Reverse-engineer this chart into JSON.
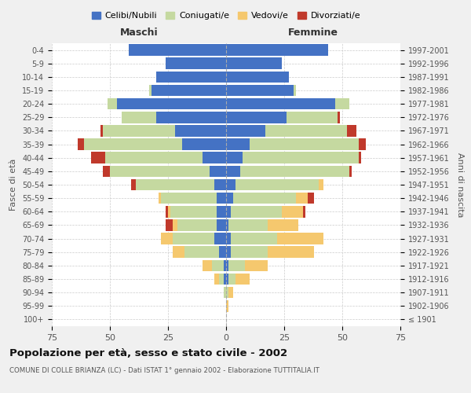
{
  "age_groups": [
    "100+",
    "95-99",
    "90-94",
    "85-89",
    "80-84",
    "75-79",
    "70-74",
    "65-69",
    "60-64",
    "55-59",
    "50-54",
    "45-49",
    "40-44",
    "35-39",
    "30-34",
    "25-29",
    "20-24",
    "15-19",
    "10-14",
    "5-9",
    "0-4"
  ],
  "birth_years": [
    "≤ 1901",
    "1902-1906",
    "1907-1911",
    "1912-1916",
    "1917-1921",
    "1922-1926",
    "1927-1931",
    "1932-1936",
    "1937-1941",
    "1942-1946",
    "1947-1951",
    "1952-1956",
    "1957-1961",
    "1962-1966",
    "1967-1971",
    "1972-1976",
    "1977-1981",
    "1982-1986",
    "1987-1991",
    "1992-1996",
    "1997-2001"
  ],
  "maschi_celibi": [
    0,
    0,
    0,
    1,
    1,
    3,
    5,
    4,
    4,
    4,
    5,
    7,
    10,
    19,
    22,
    30,
    47,
    32,
    30,
    26,
    42
  ],
  "maschi_coniugati": [
    0,
    0,
    1,
    2,
    5,
    15,
    18,
    17,
    20,
    24,
    34,
    43,
    42,
    42,
    31,
    15,
    4,
    1,
    0,
    0,
    0
  ],
  "maschi_vedovi": [
    0,
    0,
    0,
    2,
    4,
    5,
    5,
    2,
    1,
    1,
    0,
    0,
    0,
    0,
    0,
    0,
    0,
    0,
    0,
    0,
    0
  ],
  "maschi_divorziati": [
    0,
    0,
    0,
    0,
    0,
    0,
    0,
    3,
    1,
    0,
    2,
    3,
    6,
    3,
    1,
    0,
    0,
    0,
    0,
    0,
    0
  ],
  "femmine_celibi": [
    0,
    0,
    0,
    1,
    1,
    2,
    2,
    1,
    2,
    3,
    4,
    6,
    7,
    10,
    17,
    26,
    47,
    29,
    27,
    24,
    44
  ],
  "femmine_coniugati": [
    0,
    0,
    1,
    3,
    7,
    16,
    20,
    17,
    22,
    27,
    36,
    47,
    50,
    47,
    35,
    22,
    6,
    1,
    0,
    0,
    0
  ],
  "femmine_vedovi": [
    0,
    1,
    2,
    6,
    10,
    20,
    20,
    13,
    9,
    5,
    2,
    0,
    0,
    0,
    0,
    0,
    0,
    0,
    0,
    0,
    0
  ],
  "femmine_divorziati": [
    0,
    0,
    0,
    0,
    0,
    0,
    0,
    0,
    1,
    3,
    0,
    1,
    1,
    3,
    4,
    1,
    0,
    0,
    0,
    0,
    0
  ],
  "colors": {
    "celibi": "#4472c4",
    "coniugati": "#c5d9a0",
    "vedovi": "#f5c86e",
    "divorziati": "#c0392b"
  },
  "title": "Popolazione per età, sesso e stato civile - 2002",
  "subtitle": "COMUNE DI COLLE BRIANZA (LC) - Dati ISTAT 1° gennaio 2002 - Elaborazione TUTTITALIA.IT",
  "xlabel_left": "Maschi",
  "xlabel_right": "Femmine",
  "ylabel_left": "Fasce di età",
  "ylabel_right": "Anni di nascita",
  "xlim": 75,
  "background_color": "#f0f0f0",
  "plot_background": "#ffffff",
  "legend_labels": [
    "Celibi/Nubili",
    "Coniugati/e",
    "Vedovi/e",
    "Divorziati/e"
  ]
}
